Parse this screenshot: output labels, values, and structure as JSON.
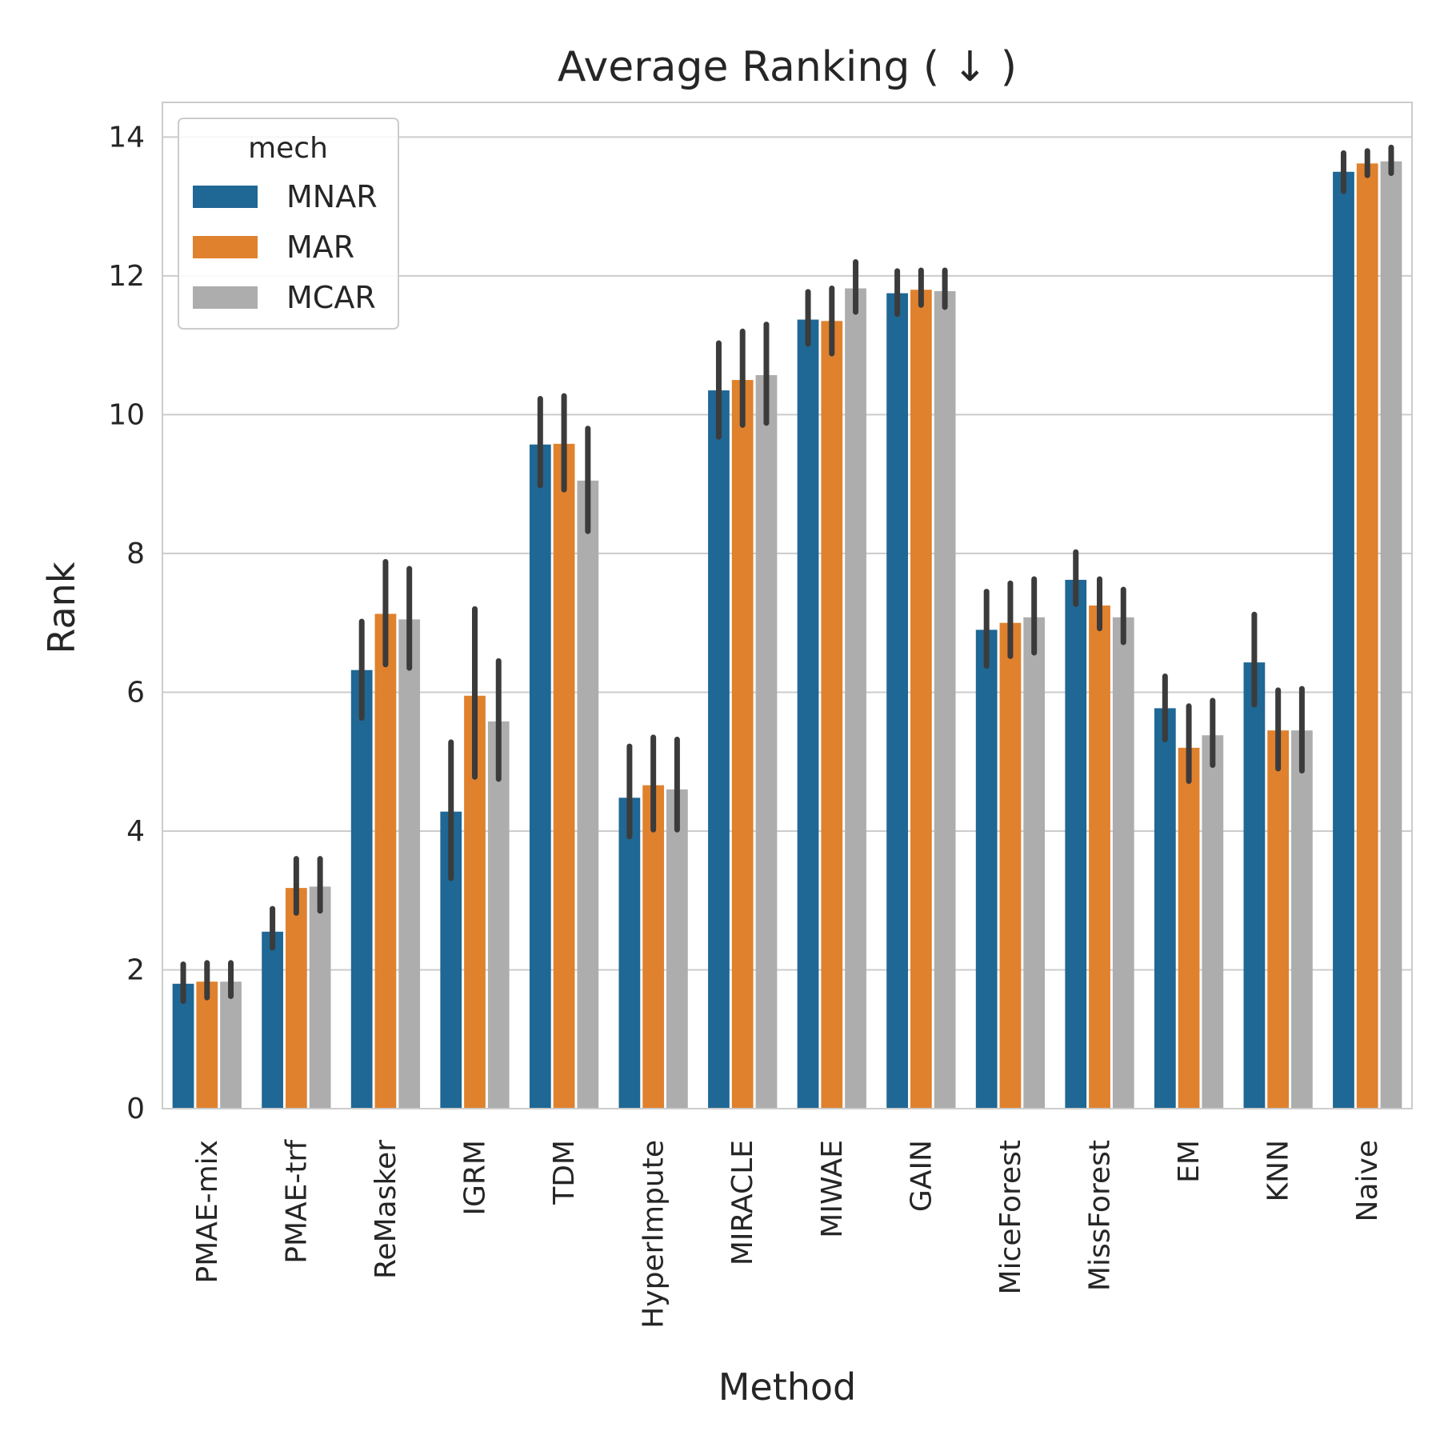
{
  "chart_data": {
    "type": "bar",
    "title": "Average Ranking ( ↓ )",
    "xlabel": "Method",
    "ylabel": "Rank",
    "ylim": [
      0,
      14.5
    ],
    "yticks": [
      0,
      2,
      4,
      6,
      8,
      10,
      12,
      14
    ],
    "ytick_labels": [
      "0",
      "2",
      "4",
      "6",
      "8",
      "10",
      "12",
      "14"
    ],
    "grid": true,
    "legend_position": "top-left",
    "legend_title": "mech",
    "categories": [
      "PMAE-mix",
      "PMAE-trf",
      "ReMasker",
      "IGRM",
      "TDM",
      "HyperImpute",
      "MIRACLE",
      "MIWAE",
      "GAIN",
      "MiceForest",
      "MissForest",
      "EM",
      "KNN",
      "Naive"
    ],
    "series": [
      {
        "name": "MNAR",
        "color": "#1f6794",
        "values": [
          1.8,
          2.55,
          6.32,
          4.28,
          9.57,
          4.48,
          10.35,
          11.37,
          11.75,
          6.9,
          7.62,
          5.77,
          6.43,
          13.5
        ],
        "ci_low": [
          1.55,
          2.32,
          5.63,
          3.32,
          8.98,
          3.92,
          9.68,
          11.02,
          11.45,
          6.38,
          7.27,
          5.32,
          5.82,
          13.22
        ],
        "ci_high": [
          2.08,
          2.88,
          7.02,
          5.28,
          10.23,
          5.22,
          11.03,
          11.77,
          12.07,
          7.45,
          8.02,
          6.23,
          7.12,
          13.77
        ]
      },
      {
        "name": "MAR",
        "color": "#e0812d",
        "values": [
          1.83,
          3.18,
          7.13,
          5.95,
          9.58,
          4.66,
          10.5,
          11.35,
          11.8,
          7.0,
          7.25,
          5.2,
          5.45,
          13.62
        ],
        "ci_low": [
          1.6,
          2.82,
          6.4,
          4.78,
          8.92,
          4.02,
          9.85,
          10.88,
          11.58,
          6.52,
          6.92,
          4.72,
          4.9,
          13.45
        ],
        "ci_high": [
          2.1,
          3.6,
          7.88,
          7.2,
          10.27,
          5.35,
          11.2,
          11.82,
          12.08,
          7.57,
          7.63,
          5.8,
          6.03,
          13.8
        ]
      },
      {
        "name": "MCAR",
        "color": "#adadad",
        "values": [
          1.83,
          3.2,
          7.05,
          5.58,
          9.05,
          4.6,
          10.57,
          11.82,
          11.78,
          7.08,
          7.08,
          5.38,
          5.45,
          13.65
        ],
        "ci_low": [
          1.62,
          2.85,
          6.35,
          4.75,
          8.32,
          4.02,
          9.88,
          11.48,
          11.55,
          6.57,
          6.72,
          4.95,
          4.87,
          13.48
        ],
        "ci_high": [
          2.1,
          3.6,
          7.78,
          6.45,
          9.8,
          5.32,
          11.3,
          12.2,
          12.08,
          7.63,
          7.48,
          5.88,
          6.05,
          13.85
        ]
      }
    ]
  }
}
